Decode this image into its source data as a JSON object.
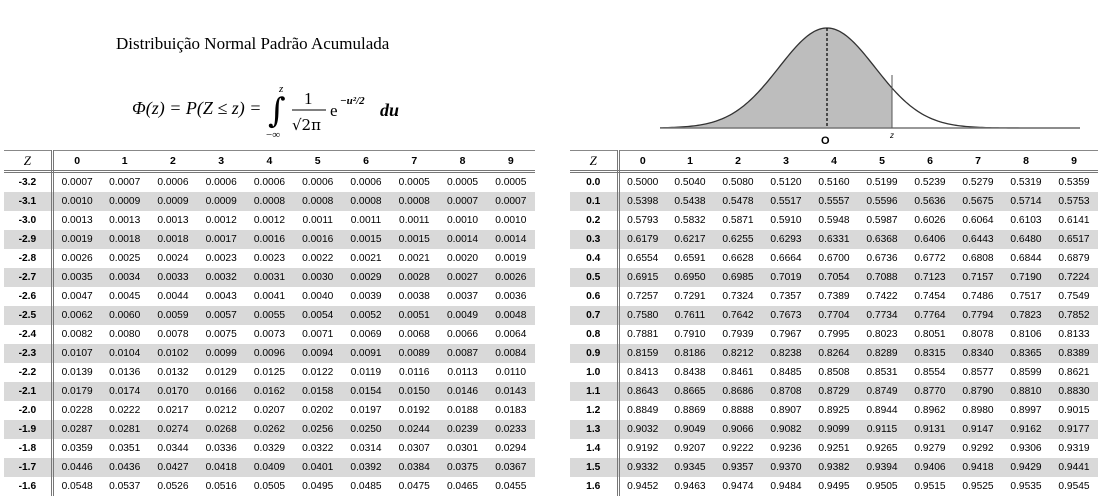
{
  "title": "Distribuição Normal Padrão Acumulada",
  "formula": {
    "lhs": "Φ(z) = P(Z ≤ z) =",
    "upper_limit": "z",
    "lower_limit": "−∞",
    "numerator": "1",
    "denominator": "√2π",
    "exponential": "e",
    "exponent": "−u²/2",
    "differential": "du"
  },
  "curve": {
    "center_label": "O",
    "z_label": "z"
  },
  "header": {
    "z_label": "Z",
    "columns": [
      "0",
      "1",
      "2",
      "3",
      "4",
      "5",
      "6",
      "7",
      "8",
      "9"
    ]
  },
  "left_table": [
    {
      "z": "-3.2",
      "values": [
        "0.0007",
        "0.0007",
        "0.0006",
        "0.0006",
        "0.0006",
        "0.0006",
        "0.0006",
        "0.0005",
        "0.0005",
        "0.0005"
      ]
    },
    {
      "z": "-3.1",
      "values": [
        "0.0010",
        "0.0009",
        "0.0009",
        "0.0009",
        "0.0008",
        "0.0008",
        "0.0008",
        "0.0008",
        "0.0007",
        "0.0007"
      ]
    },
    {
      "z": "-3.0",
      "values": [
        "0.0013",
        "0.0013",
        "0.0013",
        "0.0012",
        "0.0012",
        "0.0011",
        "0.0011",
        "0.0011",
        "0.0010",
        "0.0010"
      ]
    },
    {
      "z": "-2.9",
      "values": [
        "0.0019",
        "0.0018",
        "0.0018",
        "0.0017",
        "0.0016",
        "0.0016",
        "0.0015",
        "0.0015",
        "0.0014",
        "0.0014"
      ]
    },
    {
      "z": "-2.8",
      "values": [
        "0.0026",
        "0.0025",
        "0.0024",
        "0.0023",
        "0.0023",
        "0.0022",
        "0.0021",
        "0.0021",
        "0.0020",
        "0.0019"
      ]
    },
    {
      "z": "-2.7",
      "values": [
        "0.0035",
        "0.0034",
        "0.0033",
        "0.0032",
        "0.0031",
        "0.0030",
        "0.0029",
        "0.0028",
        "0.0027",
        "0.0026"
      ]
    },
    {
      "z": "-2.6",
      "values": [
        "0.0047",
        "0.0045",
        "0.0044",
        "0.0043",
        "0.0041",
        "0.0040",
        "0.0039",
        "0.0038",
        "0.0037",
        "0.0036"
      ]
    },
    {
      "z": "-2.5",
      "values": [
        "0.0062",
        "0.0060",
        "0.0059",
        "0.0057",
        "0.0055",
        "0.0054",
        "0.0052",
        "0.0051",
        "0.0049",
        "0.0048"
      ]
    },
    {
      "z": "-2.4",
      "values": [
        "0.0082",
        "0.0080",
        "0.0078",
        "0.0075",
        "0.0073",
        "0.0071",
        "0.0069",
        "0.0068",
        "0.0066",
        "0.0064"
      ]
    },
    {
      "z": "-2.3",
      "values": [
        "0.0107",
        "0.0104",
        "0.0102",
        "0.0099",
        "0.0096",
        "0.0094",
        "0.0091",
        "0.0089",
        "0.0087",
        "0.0084"
      ]
    },
    {
      "z": "-2.2",
      "values": [
        "0.0139",
        "0.0136",
        "0.0132",
        "0.0129",
        "0.0125",
        "0.0122",
        "0.0119",
        "0.0116",
        "0.0113",
        "0.0110"
      ]
    },
    {
      "z": "-2.1",
      "values": [
        "0.0179",
        "0.0174",
        "0.0170",
        "0.0166",
        "0.0162",
        "0.0158",
        "0.0154",
        "0.0150",
        "0.0146",
        "0.0143"
      ]
    },
    {
      "z": "-2.0",
      "values": [
        "0.0228",
        "0.0222",
        "0.0217",
        "0.0212",
        "0.0207",
        "0.0202",
        "0.0197",
        "0.0192",
        "0.0188",
        "0.0183"
      ]
    },
    {
      "z": "-1.9",
      "values": [
        "0.0287",
        "0.0281",
        "0.0274",
        "0.0268",
        "0.0262",
        "0.0256",
        "0.0250",
        "0.0244",
        "0.0239",
        "0.0233"
      ]
    },
    {
      "z": "-1.8",
      "values": [
        "0.0359",
        "0.0351",
        "0.0344",
        "0.0336",
        "0.0329",
        "0.0322",
        "0.0314",
        "0.0307",
        "0.0301",
        "0.0294"
      ]
    },
    {
      "z": "-1.7",
      "values": [
        "0.0446",
        "0.0436",
        "0.0427",
        "0.0418",
        "0.0409",
        "0.0401",
        "0.0392",
        "0.0384",
        "0.0375",
        "0.0367"
      ]
    },
    {
      "z": "-1.6",
      "values": [
        "0.0548",
        "0.0537",
        "0.0526",
        "0.0516",
        "0.0505",
        "0.0495",
        "0.0485",
        "0.0475",
        "0.0465",
        "0.0455"
      ]
    }
  ],
  "right_table": [
    {
      "z": "0.0",
      "values": [
        "0.5000",
        "0.5040",
        "0.5080",
        "0.5120",
        "0.5160",
        "0.5199",
        "0.5239",
        "0.5279",
        "0.5319",
        "0.5359"
      ]
    },
    {
      "z": "0.1",
      "values": [
        "0.5398",
        "0.5438",
        "0.5478",
        "0.5517",
        "0.5557",
        "0.5596",
        "0.5636",
        "0.5675",
        "0.5714",
        "0.5753"
      ]
    },
    {
      "z": "0.2",
      "values": [
        "0.5793",
        "0.5832",
        "0.5871",
        "0.5910",
        "0.5948",
        "0.5987",
        "0.6026",
        "0.6064",
        "0.6103",
        "0.6141"
      ]
    },
    {
      "z": "0.3",
      "values": [
        "0.6179",
        "0.6217",
        "0.6255",
        "0.6293",
        "0.6331",
        "0.6368",
        "0.6406",
        "0.6443",
        "0.6480",
        "0.6517"
      ]
    },
    {
      "z": "0.4",
      "values": [
        "0.6554",
        "0.6591",
        "0.6628",
        "0.6664",
        "0.6700",
        "0.6736",
        "0.6772",
        "0.6808",
        "0.6844",
        "0.6879"
      ]
    },
    {
      "z": "0.5",
      "values": [
        "0.6915",
        "0.6950",
        "0.6985",
        "0.7019",
        "0.7054",
        "0.7088",
        "0.7123",
        "0.7157",
        "0.7190",
        "0.7224"
      ]
    },
    {
      "z": "0.6",
      "values": [
        "0.7257",
        "0.7291",
        "0.7324",
        "0.7357",
        "0.7389",
        "0.7422",
        "0.7454",
        "0.7486",
        "0.7517",
        "0.7549"
      ]
    },
    {
      "z": "0.7",
      "values": [
        "0.7580",
        "0.7611",
        "0.7642",
        "0.7673",
        "0.7704",
        "0.7734",
        "0.7764",
        "0.7794",
        "0.7823",
        "0.7852"
      ]
    },
    {
      "z": "0.8",
      "values": [
        "0.7881",
        "0.7910",
        "0.7939",
        "0.7967",
        "0.7995",
        "0.8023",
        "0.8051",
        "0.8078",
        "0.8106",
        "0.8133"
      ]
    },
    {
      "z": "0.9",
      "values": [
        "0.8159",
        "0.8186",
        "0.8212",
        "0.8238",
        "0.8264",
        "0.8289",
        "0.8315",
        "0.8340",
        "0.8365",
        "0.8389"
      ]
    },
    {
      "z": "1.0",
      "values": [
        "0.8413",
        "0.8438",
        "0.8461",
        "0.8485",
        "0.8508",
        "0.8531",
        "0.8554",
        "0.8577",
        "0.8599",
        "0.8621"
      ]
    },
    {
      "z": "1.1",
      "values": [
        "0.8643",
        "0.8665",
        "0.8686",
        "0.8708",
        "0.8729",
        "0.8749",
        "0.8770",
        "0.8790",
        "0.8810",
        "0.8830"
      ]
    },
    {
      "z": "1.2",
      "values": [
        "0.8849",
        "0.8869",
        "0.8888",
        "0.8907",
        "0.8925",
        "0.8944",
        "0.8962",
        "0.8980",
        "0.8997",
        "0.9015"
      ]
    },
    {
      "z": "1.3",
      "values": [
        "0.9032",
        "0.9049",
        "0.9066",
        "0.9082",
        "0.9099",
        "0.9115",
        "0.9131",
        "0.9147",
        "0.9162",
        "0.9177"
      ]
    },
    {
      "z": "1.4",
      "values": [
        "0.9192",
        "0.9207",
        "0.9222",
        "0.9236",
        "0.9251",
        "0.9265",
        "0.9279",
        "0.9292",
        "0.9306",
        "0.9319"
      ]
    },
    {
      "z": "1.5",
      "values": [
        "0.9332",
        "0.9345",
        "0.9357",
        "0.9370",
        "0.9382",
        "0.9394",
        "0.9406",
        "0.9418",
        "0.9429",
        "0.9441"
      ]
    },
    {
      "z": "1.6",
      "values": [
        "0.9452",
        "0.9463",
        "0.9474",
        "0.9484",
        "0.9495",
        "0.9505",
        "0.9515",
        "0.9525",
        "0.9535",
        "0.9545"
      ]
    }
  ]
}
